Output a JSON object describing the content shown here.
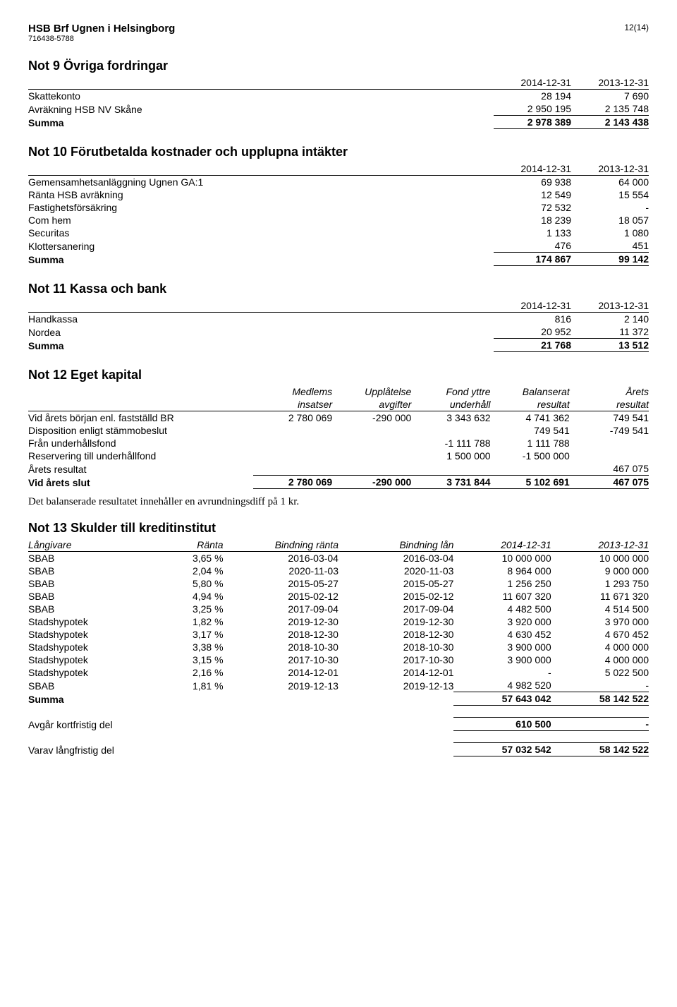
{
  "header": {
    "company": "HSB Brf Ugnen i Helsingborg",
    "org_no": "716438-5788",
    "page": "12(14)"
  },
  "note9": {
    "title": "Not 9  Övriga fordringar",
    "cols": [
      "2014-12-31",
      "2013-12-31"
    ],
    "rows": [
      {
        "label": "Skattekonto",
        "v": [
          "28 194",
          "7 690"
        ]
      },
      {
        "label": "Avräkning HSB NV Skåne",
        "v": [
          "2 950 195",
          "2 135 748"
        ]
      }
    ],
    "sum": {
      "label": "Summa",
      "v": [
        "2 978 389",
        "2 143 438"
      ]
    }
  },
  "note10": {
    "title": "Not 10  Förutbetalda kostnader och upplupna intäkter",
    "cols": [
      "2014-12-31",
      "2013-12-31"
    ],
    "rows": [
      {
        "label": "Gemensamhetsanläggning Ugnen GA:1",
        "v": [
          "69 938",
          "64 000"
        ]
      },
      {
        "label": "Ränta HSB avräkning",
        "v": [
          "12 549",
          "15 554"
        ]
      },
      {
        "label": "Fastighetsförsäkring",
        "v": [
          "72 532",
          "-"
        ]
      },
      {
        "label": "Com hem",
        "v": [
          "18 239",
          "18 057"
        ]
      },
      {
        "label": "Securitas",
        "v": [
          "1 133",
          "1 080"
        ]
      },
      {
        "label": "Klottersanering",
        "v": [
          "476",
          "451"
        ]
      }
    ],
    "sum": {
      "label": "Summa",
      "v": [
        "174 867",
        "99 142"
      ]
    }
  },
  "note11": {
    "title": "Not 11  Kassa och bank",
    "cols": [
      "2014-12-31",
      "2013-12-31"
    ],
    "rows": [
      {
        "label": "Handkassa",
        "v": [
          "816",
          "2 140"
        ]
      },
      {
        "label": "Nordea",
        "v": [
          "20 952",
          "11 372"
        ]
      }
    ],
    "sum": {
      "label": "Summa",
      "v": [
        "21 768",
        "13 512"
      ]
    }
  },
  "note12": {
    "title": "Not 12  Eget kapital",
    "headers1": [
      "Medlems",
      "Upplåtelse",
      "Fond  yttre",
      "Balanserat",
      "Årets"
    ],
    "headers2": [
      "insatser",
      "avgifter",
      "underhåll",
      "resultat",
      "resultat"
    ],
    "rows": [
      {
        "label": "Vid årets början enl. fastställd BR",
        "v": [
          "2 780 069",
          "-290 000",
          "3 343 632",
          "4 741 362",
          "749 541"
        ]
      },
      {
        "label": "Disposition enligt stämmobeslut",
        "v": [
          "",
          "",
          "",
          "749 541",
          "-749 541"
        ]
      },
      {
        "label": "Från underhållsfond",
        "v": [
          "",
          "",
          "-1 111 788",
          "1 111 788",
          ""
        ]
      },
      {
        "label": "Reservering till underhållfond",
        "v": [
          "",
          "",
          "1 500 000",
          "-1 500 000",
          ""
        ]
      },
      {
        "label": "Årets resultat",
        "v": [
          "",
          "",
          "",
          "",
          "467 075"
        ]
      }
    ],
    "sum": {
      "label": "Vid årets slut",
      "v": [
        "2 780 069",
        "-290 000",
        "3 731 844",
        "5 102 691",
        "467 075"
      ]
    },
    "footer_text": "Det balanserade resultatet innehåller en avrundningsdiff på 1 kr."
  },
  "note13": {
    "title": "Not 13  Skulder till kreditinstitut",
    "headers": [
      "Långivare",
      "Ränta",
      "Bindning ränta",
      "Bindning lån",
      "2014-12-31",
      "2013-12-31"
    ],
    "rows": [
      {
        "v": [
          "SBAB",
          "3,65 %",
          "2016-03-04",
          "2016-03-04",
          "10 000 000",
          "10 000 000"
        ]
      },
      {
        "v": [
          "SBAB",
          "2,04 %",
          "2020-11-03",
          "2020-11-03",
          "8 964 000",
          "9 000 000"
        ]
      },
      {
        "v": [
          "SBAB",
          "5,80 %",
          "2015-05-27",
          "2015-05-27",
          "1 256 250",
          "1 293 750"
        ]
      },
      {
        "v": [
          "SBAB",
          "4,94 %",
          "2015-02-12",
          "2015-02-12",
          "11 607 320",
          "11 671 320"
        ]
      },
      {
        "v": [
          "SBAB",
          "3,25 %",
          "2017-09-04",
          "2017-09-04",
          "4 482 500",
          "4 514 500"
        ]
      },
      {
        "v": [
          "Stadshypotek",
          "1,82 %",
          "2019-12-30",
          "2019-12-30",
          "3 920 000",
          "3 970 000"
        ]
      },
      {
        "v": [
          "Stadshypotek",
          "3,17 %",
          "2018-12-30",
          "2018-12-30",
          "4 630 452",
          "4 670 452"
        ]
      },
      {
        "v": [
          "Stadshypotek",
          "3,38 %",
          "2018-10-30",
          "2018-10-30",
          "3 900 000",
          "4 000 000"
        ]
      },
      {
        "v": [
          "Stadshypotek",
          "3,15 %",
          "2017-10-30",
          "2017-10-30",
          "3 900 000",
          "4 000 000"
        ]
      },
      {
        "v": [
          "Stadshypotek",
          "2,16 %",
          "2014-12-01",
          "2014-12-01",
          "-",
          "5 022 500"
        ]
      },
      {
        "v": [
          "SBAB",
          "1,81 %",
          "2019-12-13",
          "2019-12-13",
          "4 982 520",
          "-"
        ]
      }
    ],
    "sum": {
      "label": "Summa",
      "v": [
        "57 643 042",
        "58 142 522"
      ]
    },
    "short_term": {
      "label": "Avgår kortfristig del",
      "v": [
        "610 500",
        "-"
      ]
    },
    "long_term": {
      "label": "Varav långfristig del",
      "v": [
        "57 032 542",
        "58 142 522"
      ]
    }
  }
}
